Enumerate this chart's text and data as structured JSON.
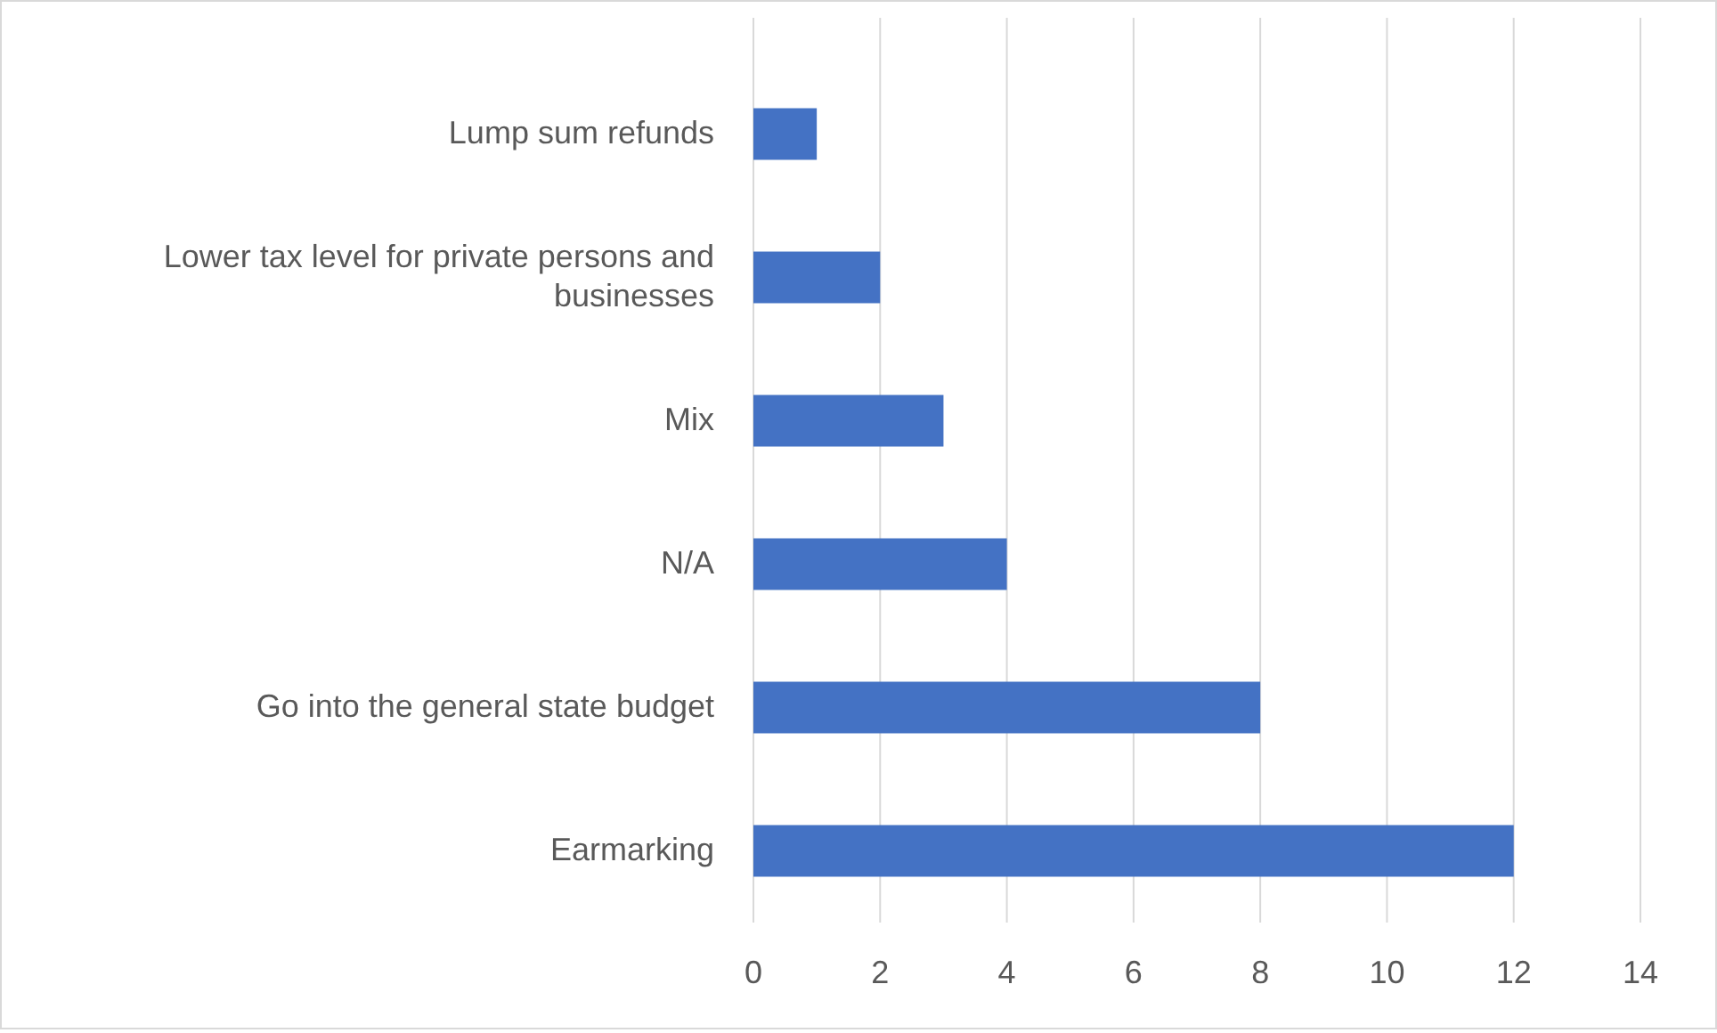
{
  "chart_data": {
    "type": "bar",
    "orientation": "horizontal",
    "categories": [
      "Lump sum refunds",
      "Lower tax level for private persons and businesses",
      "Mix",
      "N/A",
      "Go into the general state budget",
      "Earmarking"
    ],
    "values": [
      1,
      2,
      3,
      4,
      8,
      12
    ],
    "color": "#4472c4",
    "xlim": [
      0,
      14
    ],
    "xticks": [
      0,
      2,
      4,
      6,
      8,
      10,
      12,
      14
    ],
    "grid": "x"
  }
}
